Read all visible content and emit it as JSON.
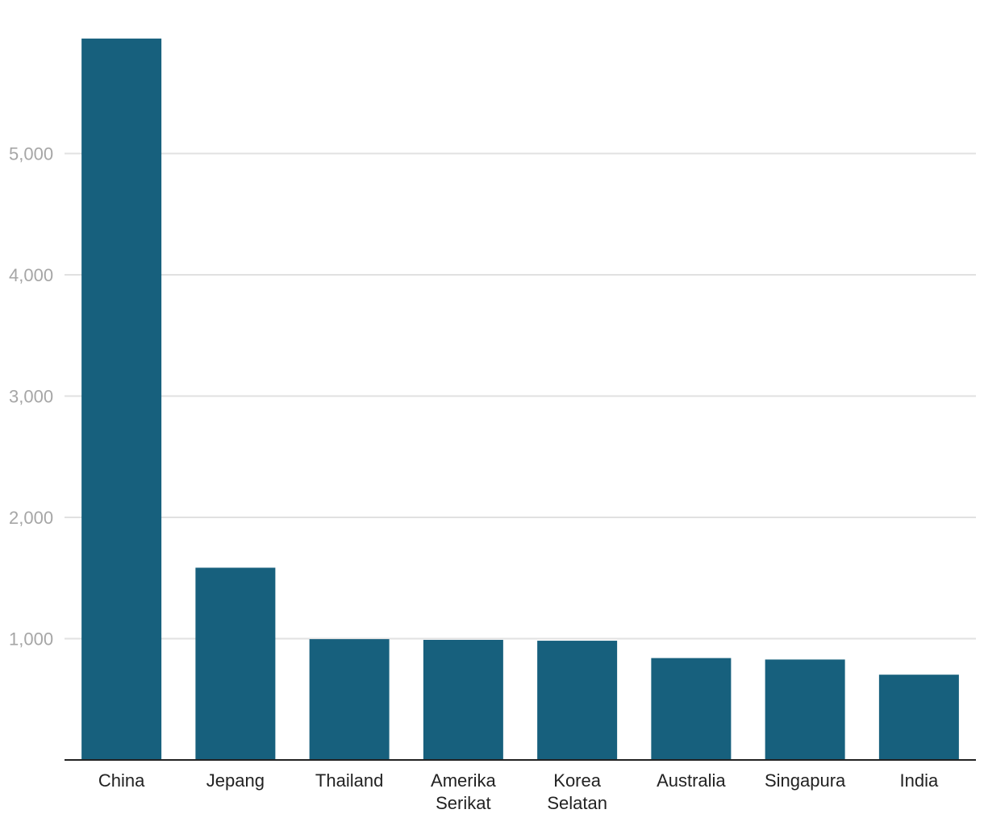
{
  "chart_data": {
    "type": "bar",
    "title": "",
    "xlabel": "",
    "ylabel": "",
    "categories": [
      [
        "China"
      ],
      [
        "Jepang"
      ],
      [
        "Thailand"
      ],
      [
        "Amerika",
        "Serikat"
      ],
      [
        "Korea",
        "Selatan"
      ],
      [
        "Australia"
      ],
      [
        "Singapura"
      ],
      [
        "India"
      ]
    ],
    "values": [
      5948,
      1585,
      996,
      990,
      983,
      840,
      828,
      703
    ],
    "bar_color": "#17607d",
    "ylim": [
      0,
      5948
    ],
    "yticks": [
      1000,
      2000,
      3000,
      4000,
      5000
    ],
    "ytick_labels": [
      "1,000",
      "2,000",
      "3,000",
      "4,000",
      "5,000"
    ],
    "grid": true,
    "legend": "none"
  }
}
